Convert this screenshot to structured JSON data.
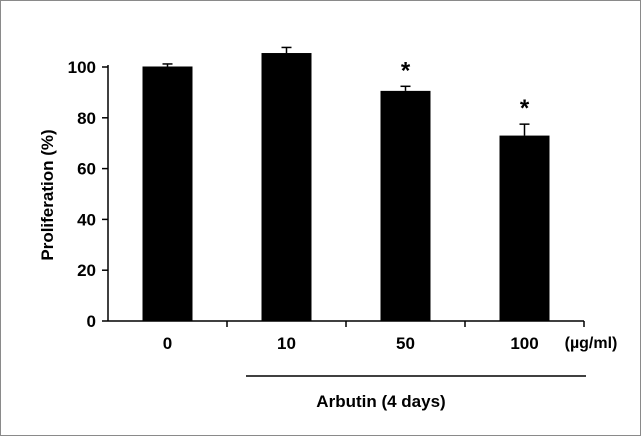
{
  "chart_data": {
    "type": "bar",
    "title": "",
    "ylabel": "Proliferation (%)",
    "xlabel": "Arbutin (4 days)",
    "x_unit": "(µg/ml)",
    "categories": [
      "0",
      "10",
      "50",
      "100"
    ],
    "values": [
      100.2,
      105.5,
      90.6,
      73.0
    ],
    "errors": [
      1.0,
      2.2,
      1.8,
      4.5
    ],
    "significance": [
      "",
      "",
      "*",
      "*"
    ],
    "ylim": [
      0,
      100
    ],
    "yticks": [
      "0",
      "20",
      "40",
      "60",
      "80",
      "100"
    ],
    "grid": false,
    "bar_color": "#000000"
  }
}
